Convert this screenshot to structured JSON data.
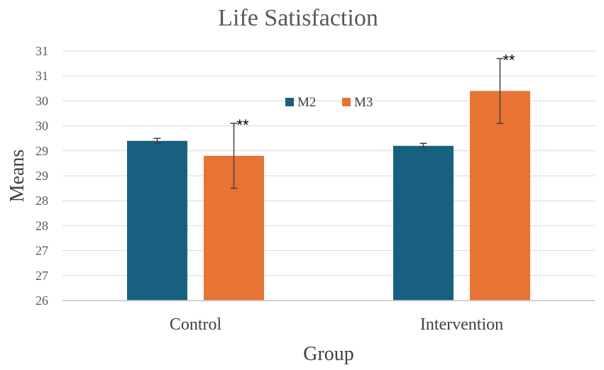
{
  "chart_data": {
    "type": "bar",
    "title": "Life Satisfaction",
    "xlabel": "Group",
    "ylabel": "Means",
    "ylim": [
      26,
      31
    ],
    "y_ticks": [
      26,
      26.5,
      27,
      27.5,
      28,
      28.5,
      29,
      29.5,
      30,
      30.5,
      31
    ],
    "y_tick_labels": [
      "26",
      "27",
      "27",
      "28",
      "28",
      "29",
      "29",
      "30",
      "30",
      "31",
      "31"
    ],
    "grid": true,
    "legend_position": "top-center",
    "categories": [
      "Control",
      "Intervention"
    ],
    "series": [
      {
        "name": "M2",
        "color": "#17607f",
        "values": [
          29.2,
          29.1
        ],
        "error": [
          0.05,
          0.05
        ],
        "annotations": [
          "",
          ""
        ]
      },
      {
        "name": "M3",
        "color": "#e87434",
        "values": [
          28.9,
          30.2
        ],
        "error": [
          0.65,
          0.65
        ],
        "annotations": [
          "**",
          "**"
        ]
      }
    ],
    "colors": {
      "grid": "#d9d9d9",
      "axis": "#bfbfbf",
      "text": "#595959",
      "errorbar": "#404040",
      "annotation": "#000000"
    }
  }
}
